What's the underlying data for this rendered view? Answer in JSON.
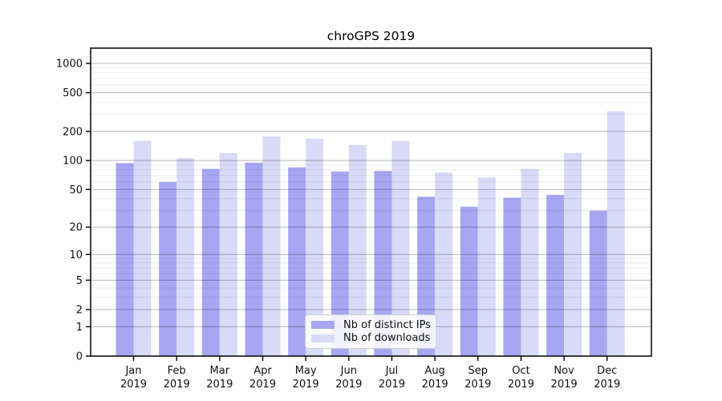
{
  "title": "chroGPS 2019",
  "colors": {
    "ips": "#a6a6f3",
    "downloads": "#d9d9f8",
    "grid_major": "rgba(0,0,0,0.28)",
    "grid_minor": "rgba(0,0,0,0.07)",
    "axis": "#000000",
    "text": "#111111",
    "legend_border": "#cfcfcf"
  },
  "x_axis": {
    "months": [
      "Jan",
      "Feb",
      "Mar",
      "Apr",
      "May",
      "Jun",
      "Jul",
      "Aug",
      "Sep",
      "Oct",
      "Nov",
      "Dec"
    ],
    "year": "2019"
  },
  "y_axis": {
    "tick_labels": [
      "0",
      "1",
      "2",
      "5",
      "10",
      "20",
      "50",
      "100",
      "200",
      "500",
      "1000"
    ]
  },
  "chart_data": {
    "type": "bar",
    "title": "chroGPS 2019",
    "categories": [
      "Jan 2019",
      "Feb 2019",
      "Mar 2019",
      "Apr 2019",
      "May 2019",
      "Jun 2019",
      "Jul 2019",
      "Aug 2019",
      "Sep 2019",
      "Oct 2019",
      "Nov 2019",
      "Dec 2019"
    ],
    "series": [
      {
        "name": "Nb of distinct IPs",
        "values": [
          94,
          60,
          82,
          95,
          85,
          77,
          78,
          42,
          33,
          41,
          44,
          30
        ]
      },
      {
        "name": "Nb of downloads",
        "values": [
          160,
          106,
          120,
          178,
          168,
          145,
          160,
          75,
          67,
          82,
          120,
          322
        ]
      }
    ],
    "xlabel": "",
    "ylabel": "",
    "y_scale": "log10(value+1)",
    "y_ticks": [
      0,
      1,
      2,
      5,
      10,
      20,
      50,
      100,
      200,
      500,
      1000
    ],
    "y_minor_gridlines": [
      3,
      4,
      6,
      7,
      8,
      9,
      30,
      40,
      60,
      70,
      80,
      90,
      300,
      400,
      600,
      700,
      800,
      900
    ],
    "ylim": [
      0,
      1430
    ],
    "grid": "both, drawn above bars",
    "legend_position": "lower center, inside plot"
  }
}
